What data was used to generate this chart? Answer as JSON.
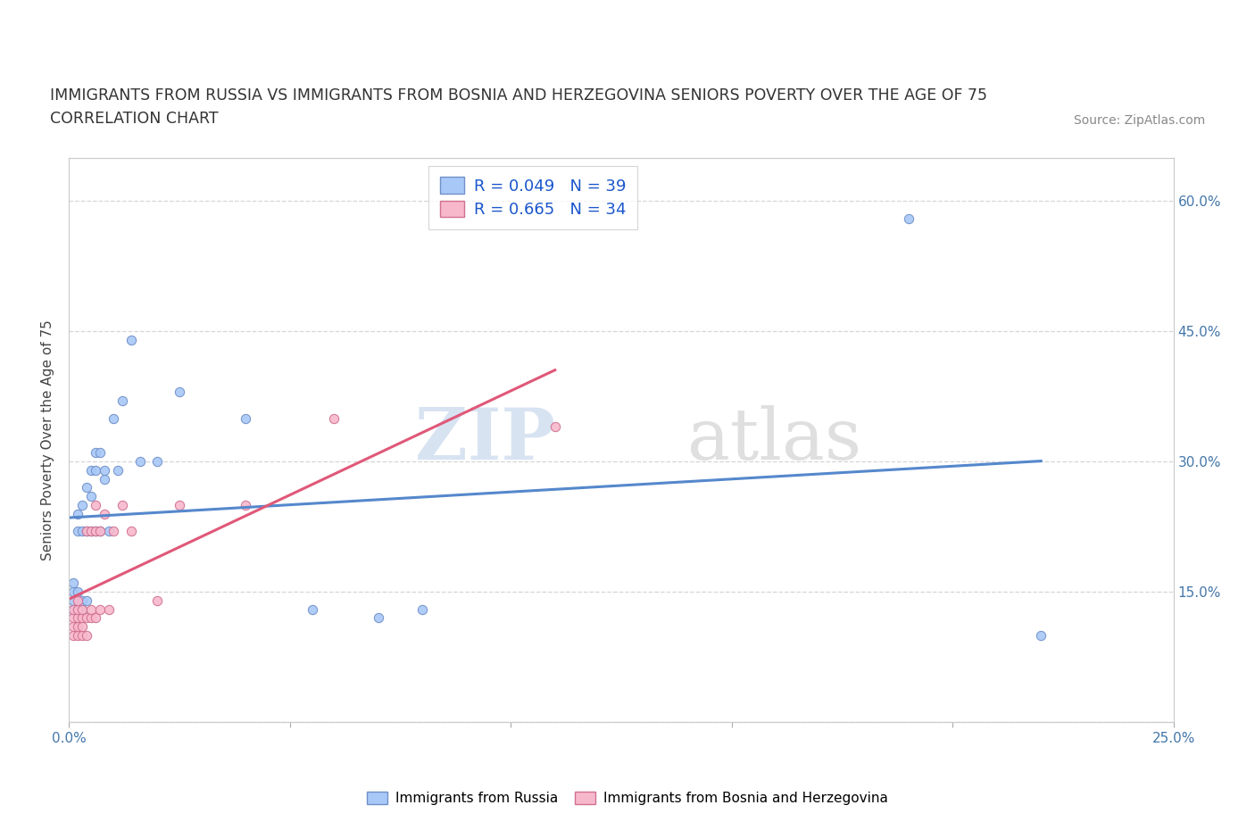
{
  "title_line1": "IMMIGRANTS FROM RUSSIA VS IMMIGRANTS FROM BOSNIA AND HERZEGOVINA SENIORS POVERTY OVER THE AGE OF 75",
  "title_line2": "CORRELATION CHART",
  "source_text": "Source: ZipAtlas.com",
  "ylabel": "Seniors Poverty Over the Age of 75",
  "xlim": [
    0.0,
    0.25
  ],
  "ylim": [
    0.0,
    0.65
  ],
  "xtick_positions": [
    0.0,
    0.05,
    0.1,
    0.15,
    0.2,
    0.25
  ],
  "xticklabels": [
    "0.0%",
    "",
    "",
    "",
    "",
    "25.0%"
  ],
  "ytick_positions": [
    0.0,
    0.15,
    0.3,
    0.45,
    0.6
  ],
  "yticklabels_right": [
    "",
    "15.0%",
    "30.0%",
    "45.0%",
    "60.0%"
  ],
  "russia_color": "#a8c8f8",
  "bosnia_color": "#f8b8cc",
  "russia_edge": "#7090c8",
  "bosnia_edge": "#d07090",
  "trendline_russia_color": "#5588cc",
  "trendline_bosnia_color": "#e05878",
  "legend_label_russia": "R = 0.049   N = 39",
  "legend_label_bosnia": "R = 0.665   N = 34",
  "legend_label_russia_bottom": "Immigrants from Russia",
  "legend_label_bosnia_bottom": "Immigrants from Bosnia and Herzegovina",
  "watermark_zip": "ZIP",
  "watermark_atlas": "atlas",
  "russia_x": [
    0.001,
    0.001,
    0.001,
    0.001,
    0.002,
    0.002,
    0.002,
    0.002,
    0.003,
    0.003,
    0.003,
    0.003,
    0.004,
    0.004,
    0.004,
    0.005,
    0.005,
    0.005,
    0.006,
    0.006,
    0.006,
    0.007,
    0.007,
    0.008,
    0.008,
    0.009,
    0.01,
    0.011,
    0.012,
    0.014,
    0.016,
    0.02,
    0.025,
    0.04,
    0.055,
    0.07,
    0.08,
    0.19,
    0.22
  ],
  "russia_y": [
    0.13,
    0.14,
    0.15,
    0.16,
    0.13,
    0.15,
    0.22,
    0.24,
    0.13,
    0.14,
    0.22,
    0.25,
    0.14,
    0.22,
    0.27,
    0.22,
    0.26,
    0.29,
    0.22,
    0.29,
    0.31,
    0.22,
    0.31,
    0.28,
    0.29,
    0.22,
    0.35,
    0.29,
    0.37,
    0.44,
    0.3,
    0.3,
    0.38,
    0.35,
    0.13,
    0.12,
    0.13,
    0.58,
    0.1
  ],
  "bosnia_x": [
    0.001,
    0.001,
    0.001,
    0.001,
    0.002,
    0.002,
    0.002,
    0.002,
    0.002,
    0.003,
    0.003,
    0.003,
    0.003,
    0.004,
    0.004,
    0.004,
    0.005,
    0.005,
    0.005,
    0.006,
    0.006,
    0.006,
    0.007,
    0.007,
    0.008,
    0.009,
    0.01,
    0.012,
    0.014,
    0.02,
    0.025,
    0.04,
    0.06,
    0.11
  ],
  "bosnia_y": [
    0.1,
    0.11,
    0.12,
    0.13,
    0.1,
    0.11,
    0.12,
    0.13,
    0.14,
    0.1,
    0.11,
    0.12,
    0.13,
    0.1,
    0.12,
    0.22,
    0.12,
    0.13,
    0.22,
    0.12,
    0.22,
    0.25,
    0.13,
    0.22,
    0.24,
    0.13,
    0.22,
    0.25,
    0.22,
    0.14,
    0.25,
    0.25,
    0.35,
    0.34
  ],
  "grid_color": "#cccccc",
  "background_color": "#ffffff",
  "title_fontsize": 12.5,
  "axis_label_fontsize": 11,
  "tick_fontsize": 11,
  "tick_color": "#4477aa"
}
